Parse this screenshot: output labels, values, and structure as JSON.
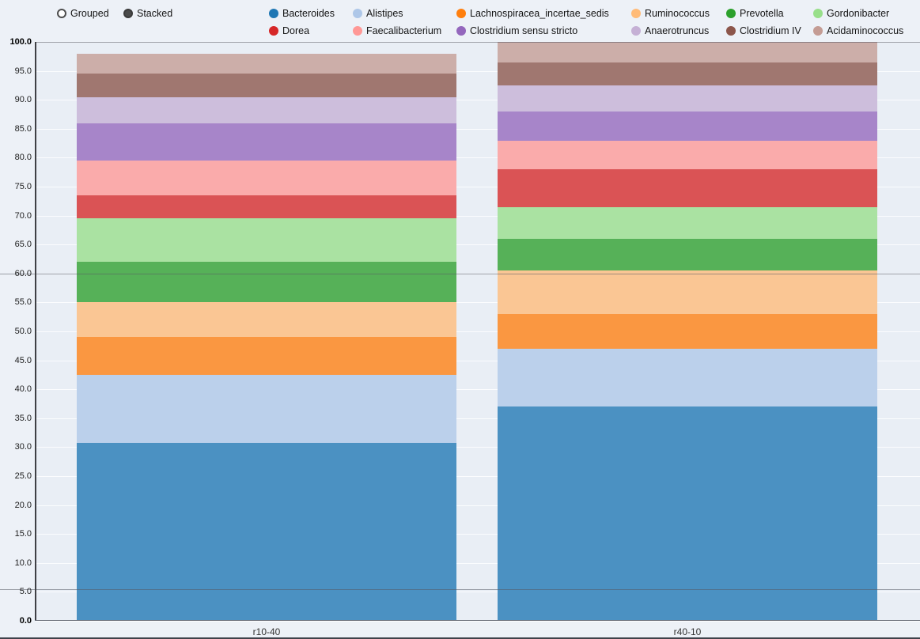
{
  "controls": {
    "mode_options": [
      {
        "label": "Grouped",
        "selected": false
      },
      {
        "label": "Stacked",
        "selected": true
      }
    ]
  },
  "colors": {
    "page_bg": "#edf1f7",
    "plot_bg": "#e9eef5",
    "axis_line": "#3f4045",
    "gridline": "#fbfcfe"
  },
  "chart_data": {
    "type": "bar",
    "stacked": true,
    "bar_opacity": 0.78,
    "categories": [
      "r10-40",
      "r40-10"
    ],
    "series": [
      {
        "name": "Bacteroides",
        "color": "#1f77b4",
        "values": [
          30.8,
          37.0
        ]
      },
      {
        "name": "Alistipes",
        "color": "#aec7e8",
        "values": [
          11.7,
          10.0
        ]
      },
      {
        "name": "Lachnospiracea_incertae_sedis",
        "color": "#ff7f0e",
        "values": [
          6.5,
          6.0
        ]
      },
      {
        "name": "Ruminococcus",
        "color": "#ffbb78",
        "values": [
          6.0,
          7.5
        ]
      },
      {
        "name": "Prevotella",
        "color": "#2ca02c",
        "values": [
          7.0,
          5.5
        ]
      },
      {
        "name": "Gordonibacter",
        "color": "#98df8a",
        "values": [
          7.5,
          5.5
        ]
      },
      {
        "name": "Dorea",
        "color": "#d62728",
        "values": [
          4.0,
          6.5
        ]
      },
      {
        "name": "Faecalibacterium",
        "color": "#ff9896",
        "values": [
          6.0,
          5.0
        ]
      },
      {
        "name": "Clostridium sensu stricto",
        "color": "#9467bd",
        "values": [
          6.5,
          5.0
        ]
      },
      {
        "name": "Anaerotruncus",
        "color": "#c5b0d5",
        "values": [
          4.5,
          4.5
        ]
      },
      {
        "name": "Clostridium IV",
        "color": "#8c564b",
        "values": [
          4.0,
          4.0
        ]
      },
      {
        "name": "Acidaminococcus",
        "color": "#c49c94",
        "values": [
          3.5,
          3.5
        ]
      }
    ],
    "ylim": [
      0,
      100
    ],
    "ytick_step": 5,
    "ytick_format": "one_decimal",
    "grid": true,
    "legend_position": "top",
    "legend_rows": 2,
    "reference_lines": [
      100,
      60,
      5.5
    ]
  }
}
